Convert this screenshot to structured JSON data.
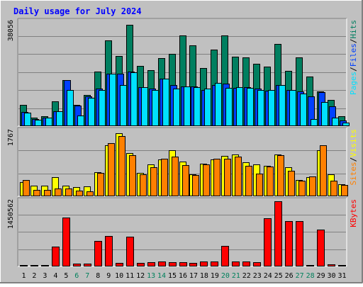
{
  "title": "Daily usage for July 2024",
  "colors": {
    "background": "#c0c0c0",
    "hits": "#007f60",
    "files": "#0040ff",
    "pages": "#00e0ff",
    "visits": "#ffff00",
    "sites": "#ff8000",
    "kbytes": "#ff0000",
    "weekend_day_label": "#00805c",
    "title_text": "#0000ff"
  },
  "chart_data": [
    {
      "type": "bar",
      "panel": "hits-files-pages",
      "ymax_label": "38056",
      "ylim": [
        0,
        38056
      ],
      "grid": true,
      "legend": [
        {
          "name": "Pages",
          "color": "#00e0ff"
        },
        {
          "name": "/",
          "color": "#000000"
        },
        {
          "name": "Files",
          "color": "#0040ff"
        },
        {
          "name": "/",
          "color": "#000000"
        },
        {
          "name": "Hits",
          "color": "#007f60"
        }
      ],
      "categories": [
        "1",
        "2",
        "3",
        "4",
        "5",
        "6",
        "7",
        "8",
        "9",
        "10",
        "11",
        "12",
        "13",
        "14",
        "15",
        "16",
        "17",
        "18",
        "19",
        "20",
        "21",
        "22",
        "23",
        "24",
        "25",
        "26",
        "27",
        "28",
        "29",
        "30",
        "31"
      ],
      "series": [
        {
          "name": "Hits",
          "values": [
            7800,
            3200,
            3700,
            9000,
            16600,
            7800,
            11400,
            19900,
            31200,
            25500,
            36800,
            21800,
            20400,
            24700,
            26100,
            32800,
            29300,
            21200,
            27700,
            32800,
            25100,
            24900,
            22500,
            21700,
            29800,
            20100,
            24900,
            17900,
            12700,
            9400,
            3600
          ]
        },
        {
          "name": "Files",
          "values": [
            5200,
            2500,
            3200,
            5400,
            16600,
            7400,
            10900,
            13600,
            18900,
            18900,
            19700,
            14100,
            13600,
            17200,
            14800,
            14500,
            14500,
            13100,
            14800,
            15400,
            13900,
            14100,
            13600,
            12800,
            15000,
            13100,
            12500,
            10900,
            12300,
            7200,
            2000
          ]
        },
        {
          "name": "Pages",
          "values": [
            4900,
            2400,
            3000,
            5400,
            13100,
            3800,
            10400,
            13100,
            18900,
            14800,
            19500,
            14100,
            13100,
            17200,
            13600,
            14500,
            14200,
            13600,
            15700,
            13900,
            14100,
            13900,
            13100,
            13100,
            14800,
            13100,
            11700,
            2500,
            8700,
            3100,
            1200
          ]
        }
      ]
    },
    {
      "type": "bar",
      "panel": "visits-sites",
      "ymax_label": "1767",
      "ylim": [
        0,
        1767
      ],
      "grid": true,
      "legend": [
        {
          "name": "Sites",
          "color": "#ff8000"
        },
        {
          "name": "/",
          "color": "#000000"
        },
        {
          "name": "Visits",
          "color": "#ffff00"
        }
      ],
      "categories": [
        "1",
        "2",
        "3",
        "4",
        "5",
        "6",
        "7",
        "8",
        "9",
        "10",
        "11",
        "12",
        "13",
        "14",
        "15",
        "16",
        "17",
        "18",
        "19",
        "20",
        "21",
        "22",
        "23",
        "24",
        "25",
        "26",
        "27",
        "28",
        "29",
        "30",
        "31"
      ],
      "series": [
        {
          "name": "Visits",
          "values": [
            380,
            280,
            280,
            520,
            280,
            250,
            260,
            640,
            1360,
            1700,
            1150,
            620,
            860,
            990,
            1230,
            930,
            580,
            880,
            980,
            1080,
            1130,
            910,
            860,
            820,
            1130,
            770,
            440,
            520,
            1230,
            580,
            330
          ]
        },
        {
          "name": "Sites",
          "values": [
            440,
            170,
            170,
            210,
            200,
            150,
            140,
            620,
            1420,
            1620,
            1110,
            580,
            770,
            1000,
            1060,
            830,
            570,
            850,
            1010,
            1000,
            1070,
            820,
            610,
            790,
            1100,
            680,
            410,
            530,
            1370,
            410,
            310
          ]
        }
      ]
    },
    {
      "type": "bar",
      "panel": "kbytes",
      "ymax_label": "1450562",
      "ylim": [
        0,
        1450562
      ],
      "grid": true,
      "legend": [
        {
          "name": "KBytes",
          "color": "#ff0000"
        }
      ],
      "categories": [
        "1",
        "2",
        "3",
        "4",
        "5",
        "6",
        "7",
        "8",
        "9",
        "10",
        "11",
        "12",
        "13",
        "14",
        "15",
        "16",
        "17",
        "18",
        "19",
        "20",
        "21",
        "22",
        "23",
        "24",
        "25",
        "26",
        "27",
        "28",
        "29",
        "30",
        "31"
      ],
      "series": [
        {
          "name": "KBytes",
          "values": [
            24000,
            34000,
            34000,
            440000,
            1080000,
            64000,
            64000,
            568000,
            664000,
            84000,
            648000,
            84000,
            94000,
            104000,
            94000,
            94000,
            84000,
            104000,
            104000,
            454000,
            104000,
            104000,
            94000,
            1060000,
            1440000,
            994000,
            994000,
            34000,
            804000,
            54000,
            34000
          ]
        }
      ]
    }
  ],
  "x_labels": [
    {
      "label": "1",
      "weekend": false
    },
    {
      "label": "2",
      "weekend": false
    },
    {
      "label": "3",
      "weekend": false
    },
    {
      "label": "4",
      "weekend": false
    },
    {
      "label": "5",
      "weekend": false
    },
    {
      "label": "6",
      "weekend": true
    },
    {
      "label": "7",
      "weekend": true
    },
    {
      "label": "8",
      "weekend": false
    },
    {
      "label": "9",
      "weekend": false
    },
    {
      "label": "10",
      "weekend": false
    },
    {
      "label": "11",
      "weekend": false
    },
    {
      "label": "12",
      "weekend": false
    },
    {
      "label": "13",
      "weekend": true
    },
    {
      "label": "14",
      "weekend": true
    },
    {
      "label": "15",
      "weekend": false
    },
    {
      "label": "16",
      "weekend": false
    },
    {
      "label": "17",
      "weekend": false
    },
    {
      "label": "18",
      "weekend": false
    },
    {
      "label": "19",
      "weekend": false
    },
    {
      "label": "20",
      "weekend": true
    },
    {
      "label": "21",
      "weekend": true
    },
    {
      "label": "22",
      "weekend": false
    },
    {
      "label": "23",
      "weekend": false
    },
    {
      "label": "24",
      "weekend": false
    },
    {
      "label": "25",
      "weekend": false
    },
    {
      "label": "26",
      "weekend": false
    },
    {
      "label": "27",
      "weekend": true
    },
    {
      "label": "28",
      "weekend": true
    },
    {
      "label": "29",
      "weekend": false
    },
    {
      "label": "30",
      "weekend": false
    },
    {
      "label": "31",
      "weekend": false
    }
  ]
}
